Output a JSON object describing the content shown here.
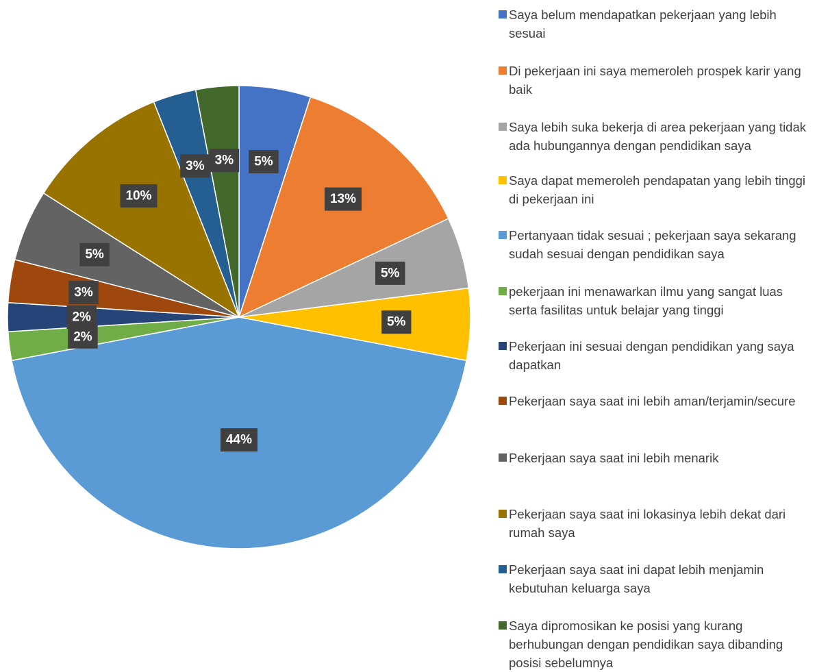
{
  "chart_data": {
    "type": "pie",
    "categories": [
      "Saya belum mendapatkan pekerjaan yang lebih sesuai",
      "Di pekerjaan ini saya memeroleh prospek karir yang baik",
      "Saya lebih suka bekerja di area pekerjaan yang tidak ada hubungannya dengan pendidikan saya",
      "Saya dapat memeroleh pendapatan yang lebih tinggi di pekerjaan ini",
      "Pertanyaan tidak sesuai ; pekerjaan saya sekarang sudah sesuai dengan pendidikan saya",
      "pekerjaan ini menawarkan ilmu yang sangat luas serta fasilitas untuk belajar yang tinggi",
      "Pekerjaan ini sesuai dengan pendidikan yang saya dapatkan",
      "Pekerjaan saya saat ini lebih aman/terjamin/secure",
      "Pekerjaan saya saat ini lebih menarik",
      "Pekerjaan saya saat ini lokasinya lebih dekat dari rumah saya",
      "Pekerjaan saya saat ini dapat lebih menjamin kebutuhan keluarga saya",
      "Saya dipromosikan ke posisi yang kurang berhubungan dengan pendidikan saya dibanding posisi sebelumnya"
    ],
    "values": [
      5,
      13,
      5,
      5,
      44,
      2,
      2,
      3,
      5,
      10,
      3,
      3
    ],
    "value_labels": [
      "5%",
      "13%",
      "5%",
      "5%",
      "44%",
      "2%",
      "2%",
      "3%",
      "5%",
      "10%",
      "3%",
      "3%"
    ],
    "colors": [
      "#4472c4",
      "#ed7d31",
      "#a5a5a5",
      "#ffc000",
      "#5b9bd5",
      "#70ad47",
      "#264478",
      "#9e480e",
      "#636363",
      "#997300",
      "#255e91",
      "#43682b"
    ],
    "legend": "right"
  }
}
